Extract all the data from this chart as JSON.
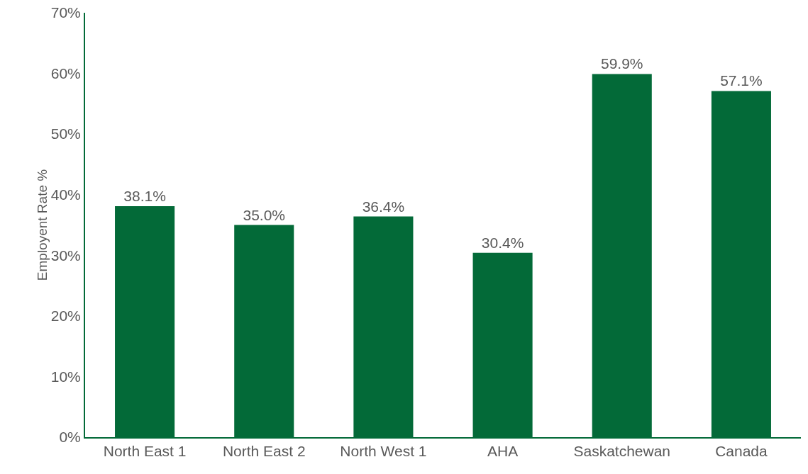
{
  "chart_data": {
    "type": "bar",
    "ylabel": "Employent Rate %",
    "categories": [
      "North East 1",
      "North East 2",
      "North West 1",
      "AHA",
      "Saskatchewan",
      "Canada"
    ],
    "values": [
      38.1,
      35.0,
      36.4,
      30.4,
      59.9,
      57.1
    ],
    "value_labels": [
      "38.1%",
      "35.0%",
      "36.4%",
      "30.4%",
      "59.9%",
      "57.1%"
    ],
    "color": "#036a38",
    "ylim": [
      0,
      70
    ],
    "yticks": [
      {
        "value": 0,
        "label": "0%"
      },
      {
        "value": 10,
        "label": "10%"
      },
      {
        "value": 20,
        "label": "20%"
      },
      {
        "value": 30,
        "label": "30%"
      },
      {
        "value": 40,
        "label": "40%"
      },
      {
        "value": 50,
        "label": "50%"
      },
      {
        "value": 60,
        "label": "60%"
      },
      {
        "value": 70,
        "label": "70%"
      }
    ],
    "grid": false
  }
}
